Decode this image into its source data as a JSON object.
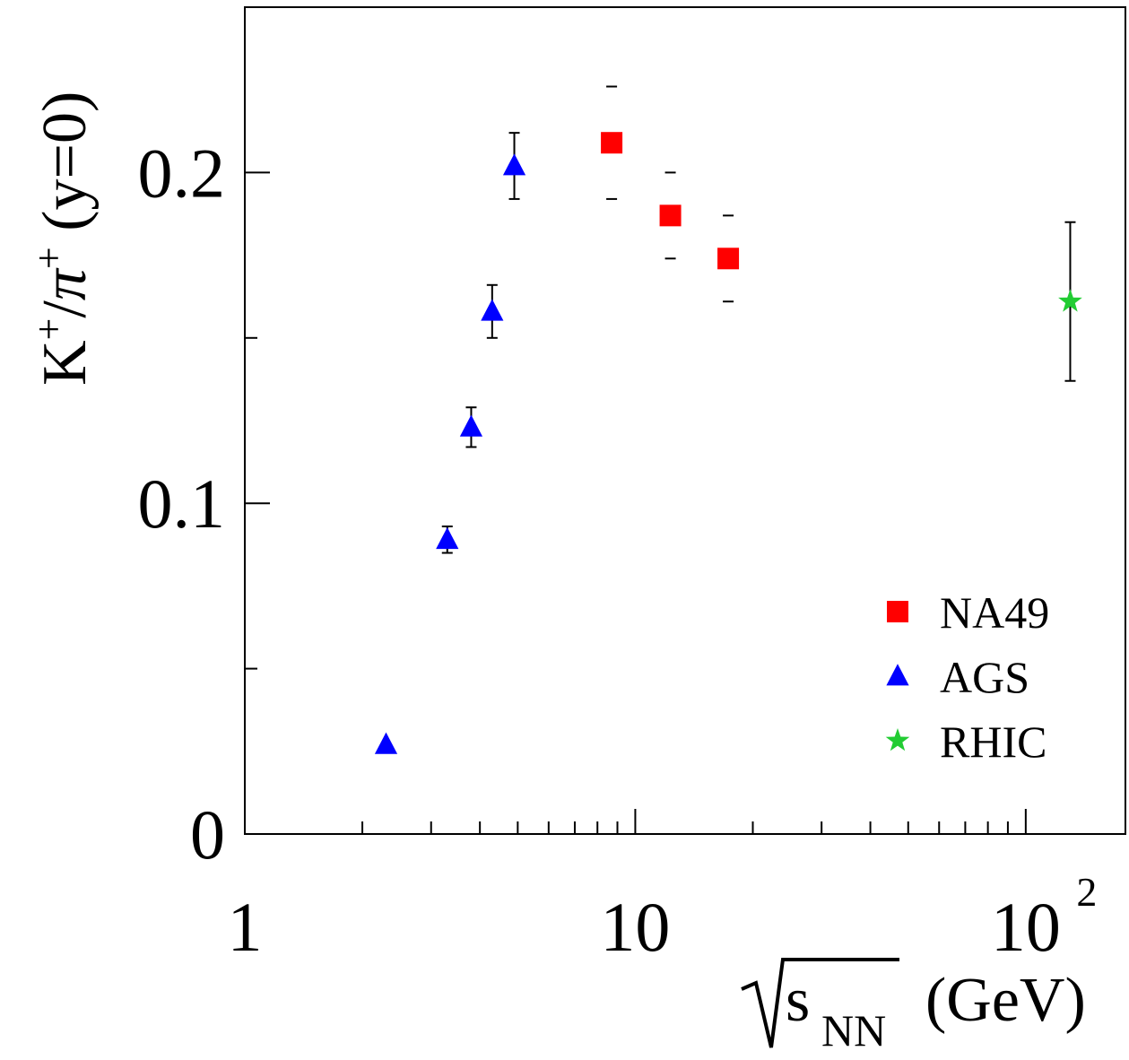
{
  "chart_data": {
    "type": "scatter",
    "xscale": "log",
    "xlim": [
      1,
      180
    ],
    "ylim": [
      0,
      0.25
    ],
    "grid": false,
    "legend_position": "lower-right",
    "x_ticks": [
      {
        "value": 1,
        "label": "1"
      },
      {
        "value": 10,
        "label": "10"
      },
      {
        "value": 100,
        "label": "10",
        "exponent": "2"
      }
    ],
    "y_ticks": [
      {
        "value": 0,
        "label": "0"
      },
      {
        "value": 0.1,
        "label": "0.1"
      },
      {
        "value": 0.2,
        "label": "0.2"
      }
    ],
    "y_minor_ticks": [
      0.05,
      0.15
    ],
    "xlabel": {
      "radical": "s",
      "subscript": "NN",
      "unit": "(GeV)"
    },
    "ylabel": {
      "K": "K",
      "plus1": "+",
      "slash": "/",
      "pi": "π",
      "plus2": "+",
      "rest": " (y=0)"
    },
    "series": [
      {
        "name": "NA49",
        "marker": "square",
        "color": "#ff0000",
        "error_style": "caps",
        "points": [
          {
            "x": 8.7,
            "y": 0.209,
            "err": 0.017
          },
          {
            "x": 12.3,
            "y": 0.187,
            "err": 0.013
          },
          {
            "x": 17.3,
            "y": 0.174,
            "err": 0.013
          }
        ]
      },
      {
        "name": "AGS",
        "marker": "triangle",
        "color": "#0000ff",
        "error_style": "bar",
        "points": [
          {
            "x": 2.3,
            "y": 0.027,
            "err": 0
          },
          {
            "x": 3.3,
            "y": 0.089,
            "err": 0.004
          },
          {
            "x": 3.8,
            "y": 0.123,
            "err": 0.006
          },
          {
            "x": 4.3,
            "y": 0.158,
            "err": 0.008
          },
          {
            "x": 4.9,
            "y": 0.202,
            "err": 0.01
          }
        ]
      },
      {
        "name": "RHIC",
        "marker": "star",
        "color": "#22cc33",
        "error_style": "bar",
        "points": [
          {
            "x": 130,
            "y": 0.161,
            "err": 0.024
          }
        ]
      }
    ]
  }
}
